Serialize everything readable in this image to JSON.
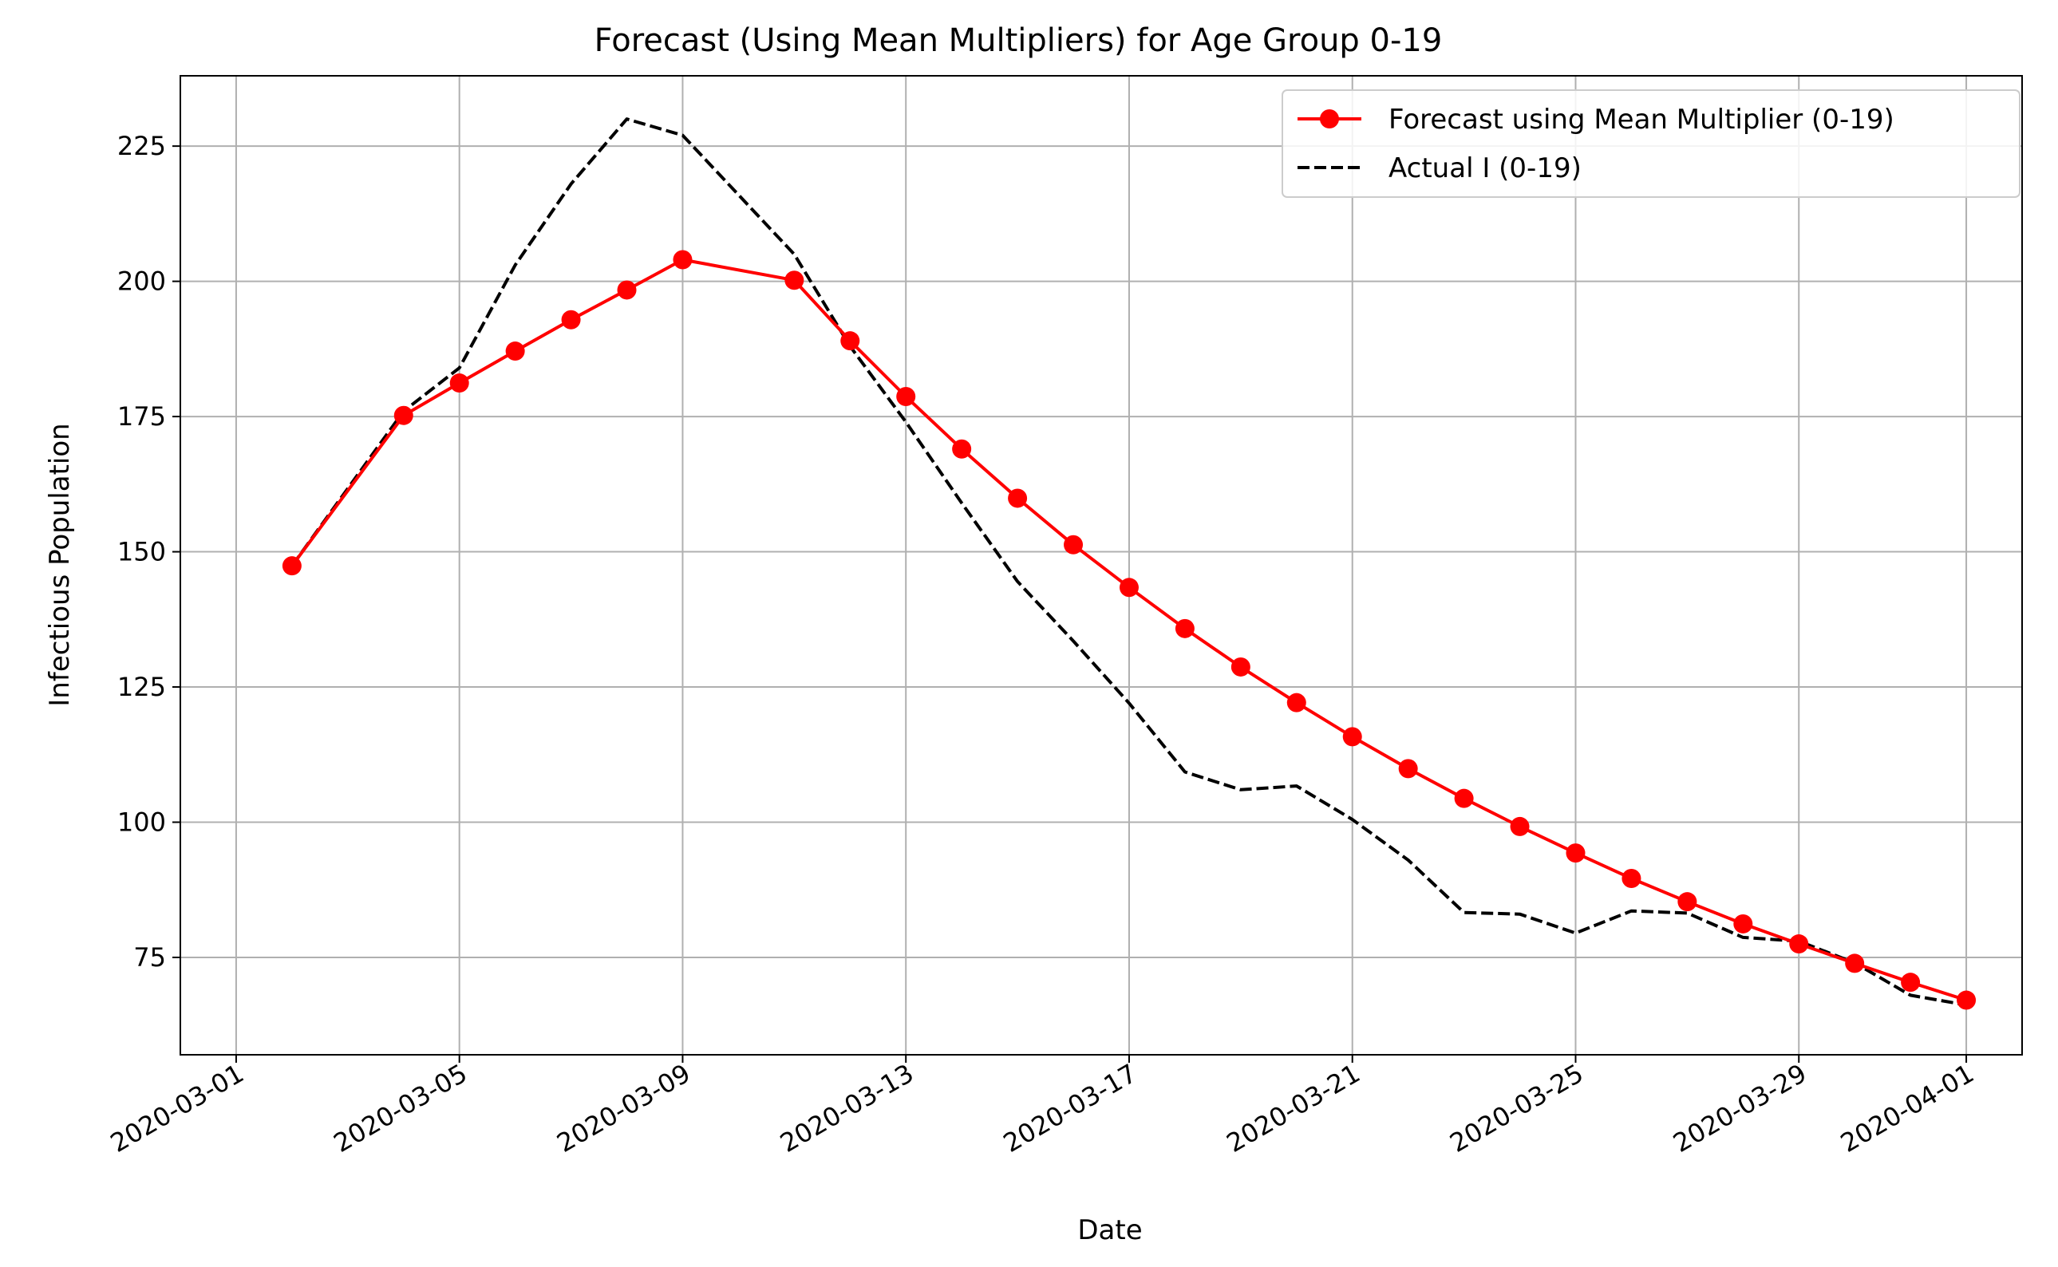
{
  "chart_data": {
    "type": "line",
    "title": "Forecast (Using Mean Multipliers) for Age Group 0-19",
    "xlabel": "Date",
    "ylabel": "Infectious Population",
    "xlim": [
      "2020-02-29",
      "2020-04-02"
    ],
    "ylim": [
      57,
      238
    ],
    "x_ticks": [
      "2020-03-01",
      "2020-03-05",
      "2020-03-09",
      "2020-03-13",
      "2020-03-17",
      "2020-03-21",
      "2020-03-25",
      "2020-03-29",
      "2020-04-01"
    ],
    "y_ticks": [
      75,
      100,
      125,
      150,
      175,
      200,
      225
    ],
    "grid": true,
    "legend_position": "top-right",
    "colors": {
      "forecast": "#ff0000",
      "actual": "#000000"
    },
    "series": [
      {
        "name": "Forecast using Mean Multiplier (0-19)",
        "style": "solid-with-markers",
        "points": [
          {
            "x": "2020-03-02",
            "y": 147.4
          },
          {
            "x": "2020-03-04",
            "y": 175.2
          },
          {
            "x": "2020-03-05",
            "y": 181.2
          },
          {
            "x": "2020-03-06",
            "y": 187.1
          },
          {
            "x": "2020-03-07",
            "y": 192.9
          },
          {
            "x": "2020-03-08",
            "y": 198.4
          },
          {
            "x": "2020-03-09",
            "y": 204.0
          },
          {
            "x": "2020-03-11",
            "y": 200.2
          },
          {
            "x": "2020-03-12",
            "y": 189.0
          },
          {
            "x": "2020-03-13",
            "y": 178.7
          },
          {
            "x": "2020-03-14",
            "y": 169.0
          },
          {
            "x": "2020-03-15",
            "y": 159.9
          },
          {
            "x": "2020-03-16",
            "y": 151.3
          },
          {
            "x": "2020-03-17",
            "y": 143.4
          },
          {
            "x": "2020-03-18",
            "y": 135.8
          },
          {
            "x": "2020-03-19",
            "y": 128.7
          },
          {
            "x": "2020-03-20",
            "y": 122.1
          },
          {
            "x": "2020-03-21",
            "y": 115.8
          },
          {
            "x": "2020-03-22",
            "y": 109.9
          },
          {
            "x": "2020-03-23",
            "y": 104.4
          },
          {
            "x": "2020-03-24",
            "y": 99.2
          },
          {
            "x": "2020-03-25",
            "y": 94.3
          },
          {
            "x": "2020-03-26",
            "y": 89.6
          },
          {
            "x": "2020-03-27",
            "y": 85.3
          },
          {
            "x": "2020-03-28",
            "y": 81.2
          },
          {
            "x": "2020-03-29",
            "y": 77.5
          },
          {
            "x": "2020-03-30",
            "y": 73.9
          },
          {
            "x": "2020-03-31",
            "y": 70.4
          },
          {
            "x": "2020-04-01",
            "y": 67.1
          }
        ]
      },
      {
        "name": "Actual I (0-19)",
        "style": "dashed",
        "points": [
          {
            "x": "2020-03-02",
            "y": 147.4
          },
          {
            "x": "2020-03-04",
            "y": 176.0
          },
          {
            "x": "2020-03-05",
            "y": 184.0
          },
          {
            "x": "2020-03-06",
            "y": 203.0
          },
          {
            "x": "2020-03-07",
            "y": 218.0
          },
          {
            "x": "2020-03-08",
            "y": 230.0
          },
          {
            "x": "2020-03-09",
            "y": 227.0
          },
          {
            "x": "2020-03-11",
            "y": 205.0
          },
          {
            "x": "2020-03-12",
            "y": 188.0
          },
          {
            "x": "2020-03-13",
            "y": 174.0
          },
          {
            "x": "2020-03-14",
            "y": 159.0
          },
          {
            "x": "2020-03-15",
            "y": 144.5
          },
          {
            "x": "2020-03-16",
            "y": 133.5
          },
          {
            "x": "2020-03-17",
            "y": 122.0
          },
          {
            "x": "2020-03-18",
            "y": 109.3
          },
          {
            "x": "2020-03-19",
            "y": 106.0
          },
          {
            "x": "2020-03-20",
            "y": 106.7
          },
          {
            "x": "2020-03-21",
            "y": 100.5
          },
          {
            "x": "2020-03-22",
            "y": 93.0
          },
          {
            "x": "2020-03-23",
            "y": 83.3
          },
          {
            "x": "2020-03-24",
            "y": 83.0
          },
          {
            "x": "2020-03-25",
            "y": 79.5
          },
          {
            "x": "2020-03-26",
            "y": 83.6
          },
          {
            "x": "2020-03-27",
            "y": 83.2
          },
          {
            "x": "2020-03-28",
            "y": 78.7
          },
          {
            "x": "2020-03-29",
            "y": 78.0
          },
          {
            "x": "2020-03-30",
            "y": 74.0
          },
          {
            "x": "2020-03-31",
            "y": 68.0
          },
          {
            "x": "2020-04-01",
            "y": 66.2
          }
        ]
      }
    ]
  }
}
